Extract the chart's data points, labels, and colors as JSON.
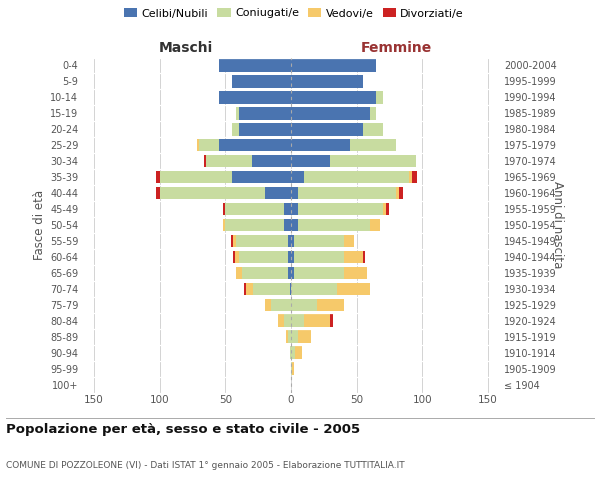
{
  "age_groups": [
    "100+",
    "95-99",
    "90-94",
    "85-89",
    "80-84",
    "75-79",
    "70-74",
    "65-69",
    "60-64",
    "55-59",
    "50-54",
    "45-49",
    "40-44",
    "35-39",
    "30-34",
    "25-29",
    "20-24",
    "15-19",
    "10-14",
    "5-9",
    "0-4"
  ],
  "birth_years": [
    "≤ 1904",
    "1905-1909",
    "1910-1914",
    "1915-1919",
    "1920-1924",
    "1925-1929",
    "1930-1934",
    "1935-1939",
    "1940-1944",
    "1945-1949",
    "1950-1954",
    "1955-1959",
    "1960-1964",
    "1965-1969",
    "1970-1974",
    "1975-1979",
    "1980-1984",
    "1985-1989",
    "1990-1994",
    "1995-1999",
    "2000-2004"
  ],
  "maschi_celibi": [
    0,
    0,
    0,
    0,
    0,
    0,
    1,
    2,
    2,
    2,
    5,
    5,
    20,
    45,
    30,
    55,
    40,
    40,
    55,
    45,
    55
  ],
  "maschi_coniugati": [
    0,
    0,
    1,
    2,
    5,
    15,
    28,
    35,
    38,
    40,
    45,
    45,
    80,
    55,
    35,
    15,
    5,
    2,
    0,
    0,
    0
  ],
  "maschi_vedovi": [
    0,
    0,
    0,
    2,
    5,
    5,
    5,
    5,
    3,
    2,
    2,
    0,
    0,
    0,
    0,
    2,
    0,
    0,
    0,
    0,
    0
  ],
  "maschi_divorziati": [
    0,
    0,
    0,
    0,
    0,
    0,
    2,
    0,
    1,
    2,
    0,
    2,
    3,
    3,
    1,
    0,
    0,
    0,
    0,
    0,
    0
  ],
  "femmine_celibi": [
    0,
    0,
    0,
    0,
    0,
    0,
    0,
    2,
    2,
    2,
    5,
    5,
    5,
    10,
    30,
    45,
    55,
    60,
    65,
    55,
    65
  ],
  "femmine_coniugati": [
    0,
    1,
    3,
    5,
    10,
    20,
    35,
    38,
    38,
    38,
    55,
    65,
    75,
    80,
    65,
    35,
    15,
    5,
    5,
    0,
    0
  ],
  "femmine_vedovi": [
    0,
    1,
    5,
    10,
    20,
    20,
    25,
    18,
    15,
    8,
    8,
    2,
    2,
    2,
    0,
    0,
    0,
    0,
    0,
    0,
    0
  ],
  "femmine_divorziati": [
    0,
    0,
    0,
    0,
    2,
    0,
    0,
    0,
    1,
    0,
    0,
    3,
    3,
    4,
    0,
    0,
    0,
    0,
    0,
    0,
    0
  ],
  "color_celibi": "#4a74b0",
  "color_coniugati": "#c8dca0",
  "color_vedovi": "#f6c96a",
  "color_divorziati": "#cc2222",
  "title": "Popolazione per età, sesso e stato civile - 2005",
  "subtitle": "COMUNE DI POZZOLEONE (VI) - Dati ISTAT 1° gennaio 2005 - Elaborazione TUTTITALIA.IT",
  "ylabel_left": "Fasce di età",
  "ylabel_right": "Anni di nascita",
  "xlim": 160,
  "background_color": "#ffffff",
  "grid_color": "#cccccc",
  "maschi_color": "#333333",
  "femmine_color": "#993333",
  "legend_labels": [
    "Celibi/Nubili",
    "Coniugati/e",
    "Vedovi/e",
    "Divorziati/e"
  ]
}
